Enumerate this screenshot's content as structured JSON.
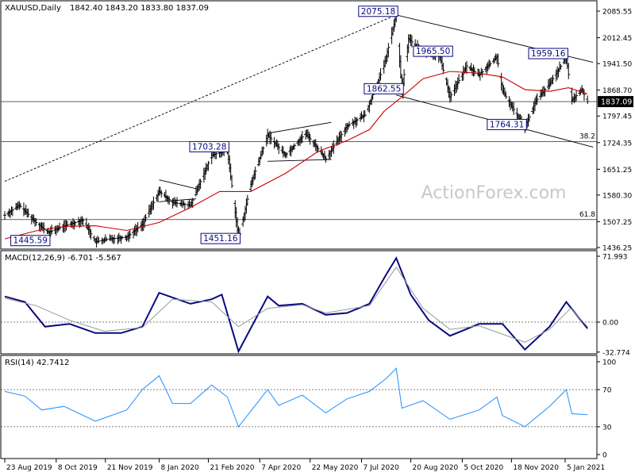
{
  "chart_data": [
    {
      "type": "candlestick",
      "title": "XAUUSD,Daily",
      "ohlc_label": "1842.40 1843.20 1833.80 1837.09",
      "current_price_label": "1837.09",
      "ylim": [
        1400,
        2120
      ],
      "y_ticks": [
        "2085.55",
        "2012.45",
        "1941.50",
        "1868.70",
        "1797.45",
        "1724.35",
        "1651.25",
        "1580.30",
        "1507.25",
        "1436.25"
      ],
      "price_series": [
        [
          "2019-08-23",
          1525
        ],
        [
          "2019-09-05",
          1552
        ],
        [
          "2019-09-20",
          1505
        ],
        [
          "2019-10-01",
          1478
        ],
        [
          "2019-10-15",
          1495
        ],
        [
          "2019-11-01",
          1512
        ],
        [
          "2019-11-12",
          1452
        ],
        [
          "2019-11-25",
          1460
        ],
        [
          "2019-12-10",
          1465
        ],
        [
          "2019-12-24",
          1500
        ],
        [
          "2020-01-08",
          1590
        ],
        [
          "2020-01-20",
          1560
        ],
        [
          "2020-02-05",
          1552
        ],
        [
          "2020-02-24",
          1690
        ],
        [
          "2020-03-09",
          1703
        ],
        [
          "2020-03-19",
          1460
        ],
        [
          "2020-03-30",
          1610
        ],
        [
          "2020-04-14",
          1745
        ],
        [
          "2020-04-30",
          1690
        ],
        [
          "2020-05-18",
          1750
        ],
        [
          "2020-06-05",
          1680
        ],
        [
          "2020-06-24",
          1770
        ],
        [
          "2020-07-10",
          1800
        ],
        [
          "2020-07-27",
          1935
        ],
        [
          "2020-08-07",
          2075
        ],
        [
          "2020-08-12",
          1862
        ],
        [
          "2020-08-18",
          2010
        ],
        [
          "2020-08-31",
          1970
        ],
        [
          "2020-09-15",
          1960
        ],
        [
          "2020-09-24",
          1850
        ],
        [
          "2020-10-09",
          1935
        ],
        [
          "2020-10-20",
          1910
        ],
        [
          "2020-11-05",
          1960
        ],
        [
          "2020-11-10",
          1865
        ],
        [
          "2020-11-30",
          1765
        ],
        [
          "2020-12-10",
          1840
        ],
        [
          "2020-12-22",
          1885
        ],
        [
          "2021-01-06",
          1959
        ],
        [
          "2021-01-11",
          1840
        ],
        [
          "2021-01-20",
          1870
        ],
        [
          "2021-01-25",
          1837
        ]
      ],
      "sma_series": [
        [
          "2019-08-23",
          1460
        ],
        [
          "2019-09-20",
          1482
        ],
        [
          "2019-10-15",
          1494
        ],
        [
          "2019-11-12",
          1496
        ],
        [
          "2019-12-10",
          1483
        ],
        [
          "2020-01-08",
          1505
        ],
        [
          "2020-02-05",
          1546
        ],
        [
          "2020-03-02",
          1590
        ],
        [
          "2020-03-30",
          1590
        ],
        [
          "2020-04-30",
          1640
        ],
        [
          "2020-05-29",
          1700
        ],
        [
          "2020-06-24",
          1730
        ],
        [
          "2020-07-14",
          1760
        ],
        [
          "2020-07-27",
          1810
        ],
        [
          "2020-08-12",
          1850
        ],
        [
          "2020-08-31",
          1900
        ],
        [
          "2020-09-24",
          1920
        ],
        [
          "2020-10-20",
          1915
        ],
        [
          "2020-11-10",
          1905
        ],
        [
          "2020-11-30",
          1870
        ],
        [
          "2020-12-22",
          1865
        ],
        [
          "2021-01-08",
          1875
        ],
        [
          "2021-01-25",
          1858
        ]
      ],
      "annotations": [
        {
          "label": "2075.18",
          "date": "2020-08-07",
          "price": 2075.18
        },
        {
          "label": "1965.50",
          "date": "2020-09-25",
          "price": 1965.5
        },
        {
          "label": "1959.16",
          "date": "2021-01-06",
          "price": 1959.16
        },
        {
          "label": "1862.55",
          "date": "2020-08-12",
          "price": 1862.55
        },
        {
          "label": "1764.31",
          "date": "2020-11-30",
          "price": 1764.31
        },
        {
          "label": "1703.28",
          "date": "2020-03-09",
          "price": 1703.28
        },
        {
          "label": "1451.16",
          "date": "2020-03-19",
          "price": 1451.16
        },
        {
          "label": "1445.59",
          "date": "2019-10-01",
          "price": 1445.59
        }
      ],
      "fib_levels": [
        {
          "label": "38.2",
          "price": 1727
        },
        {
          "label": "61.8",
          "price": 1513
        }
      ],
      "hlines": [
        1837
      ],
      "trendlines": [
        {
          "from": [
            "2019-08-23",
            1618
          ],
          "to": [
            "2020-08-07",
            2075
          ],
          "style": "dashed"
        },
        {
          "from": [
            "2020-08-07",
            2075
          ],
          "to": [
            "2021-01-30",
            1945
          ],
          "style": "solid"
        },
        {
          "from": [
            "2020-08-07",
            1855
          ],
          "to": [
            "2021-01-30",
            1712
          ],
          "style": "solid"
        },
        {
          "from": [
            "2020-01-08",
            1622
          ],
          "to": [
            "2020-02-10",
            1598
          ],
          "style": "solid"
        },
        {
          "from": [
            "2020-01-08",
            1562
          ],
          "to": [
            "2020-02-10",
            1570
          ],
          "style": "solid"
        },
        {
          "from": [
            "2020-04-14",
            1750
          ],
          "to": [
            "2020-06-10",
            1780
          ],
          "style": "solid"
        },
        {
          "from": [
            "2020-04-14",
            1673
          ],
          "to": [
            "2020-06-10",
            1678
          ],
          "style": "solid"
        }
      ],
      "watermark": "ActionForex.com"
    },
    {
      "type": "line",
      "title": "MACD(12,26,9) -6.701 -5.567",
      "ylim": [
        -40,
        80
      ],
      "y_ticks": [
        "71.993",
        "0.00",
        "-32.774"
      ],
      "current_labels": [
        "0.00",
        "0.00"
      ],
      "series": [
        {
          "role": "macd",
          "points": [
            [
              "2019-08-23",
              28
            ],
            [
              "2019-09-10",
              22
            ],
            [
              "2019-09-28",
              -5
            ],
            [
              "2019-10-20",
              -2
            ],
            [
              "2019-11-12",
              -12
            ],
            [
              "2019-12-05",
              -12
            ],
            [
              "2019-12-24",
              -5
            ],
            [
              "2020-01-08",
              32
            ],
            [
              "2020-02-05",
              20
            ],
            [
              "2020-02-24",
              25
            ],
            [
              "2020-03-04",
              30
            ],
            [
              "2020-03-19",
              -32
            ],
            [
              "2020-04-14",
              28
            ],
            [
              "2020-04-24",
              18
            ],
            [
              "2020-05-15",
              20
            ],
            [
              "2020-06-05",
              8
            ],
            [
              "2020-06-24",
              10
            ],
            [
              "2020-07-14",
              20
            ],
            [
              "2020-07-29",
              52
            ],
            [
              "2020-08-07",
              70
            ],
            [
              "2020-08-20",
              30
            ],
            [
              "2020-09-05",
              2
            ],
            [
              "2020-09-24",
              -15
            ],
            [
              "2020-10-20",
              -2
            ],
            [
              "2020-11-10",
              -2
            ],
            [
              "2020-11-30",
              -30
            ],
            [
              "2020-12-22",
              -5
            ],
            [
              "2021-01-06",
              22
            ],
            [
              "2021-01-25",
              -7
            ]
          ]
        },
        {
          "role": "signal",
          "points": [
            [
              "2019-08-23",
              26
            ],
            [
              "2019-09-20",
              18
            ],
            [
              "2019-10-20",
              2
            ],
            [
              "2019-11-20",
              -10
            ],
            [
              "2019-12-24",
              -6
            ],
            [
              "2020-01-20",
              25
            ],
            [
              "2020-02-24",
              22
            ],
            [
              "2020-03-19",
              -5
            ],
            [
              "2020-04-14",
              15
            ],
            [
              "2020-05-15",
              19
            ],
            [
              "2020-06-05",
              10
            ],
            [
              "2020-07-14",
              18
            ],
            [
              "2020-08-07",
              60
            ],
            [
              "2020-08-31",
              15
            ],
            [
              "2020-09-24",
              -8
            ],
            [
              "2020-10-20",
              -4
            ],
            [
              "2020-11-30",
              -22
            ],
            [
              "2020-12-22",
              -8
            ],
            [
              "2021-01-10",
              15
            ],
            [
              "2021-01-25",
              -5
            ]
          ]
        }
      ]
    },
    {
      "type": "line",
      "title": "RSI(14) 42.7412",
      "ylim": [
        0,
        100
      ],
      "y_ticks": [
        "100",
        "70",
        "30",
        "0"
      ],
      "reference_levels": [
        70,
        30
      ],
      "series": [
        {
          "role": "rsi",
          "points": [
            [
              "2019-08-23",
              68
            ],
            [
              "2019-09-10",
              63
            ],
            [
              "2019-09-25",
              48
            ],
            [
              "2019-10-15",
              52
            ],
            [
              "2019-11-12",
              36
            ],
            [
              "2019-12-10",
              48
            ],
            [
              "2019-12-24",
              70
            ],
            [
              "2020-01-08",
              85
            ],
            [
              "2020-01-20",
              55
            ],
            [
              "2020-02-05",
              55
            ],
            [
              "2020-02-24",
              75
            ],
            [
              "2020-03-09",
              62
            ],
            [
              "2020-03-19",
              30
            ],
            [
              "2020-04-14",
              70
            ],
            [
              "2020-04-24",
              53
            ],
            [
              "2020-05-15",
              64
            ],
            [
              "2020-06-05",
              45
            ],
            [
              "2020-06-24",
              60
            ],
            [
              "2020-07-14",
              68
            ],
            [
              "2020-07-29",
              82
            ],
            [
              "2020-08-07",
              93
            ],
            [
              "2020-08-12",
              50
            ],
            [
              "2020-08-31",
              58
            ],
            [
              "2020-09-24",
              38
            ],
            [
              "2020-10-20",
              48
            ],
            [
              "2020-11-05",
              62
            ],
            [
              "2020-11-10",
              42
            ],
            [
              "2020-11-30",
              30
            ],
            [
              "2020-12-22",
              52
            ],
            [
              "2021-01-06",
              70
            ],
            [
              "2021-01-11",
              44
            ],
            [
              "2021-01-25",
              43
            ]
          ]
        }
      ]
    }
  ],
  "x_axis": {
    "ticks": [
      {
        "label": "23 Aug 2019",
        "date": "2019-08-23"
      },
      {
        "label": "8 Oct 2019",
        "date": "2019-10-08"
      },
      {
        "label": "21 Nov 2019",
        "date": "2019-11-21"
      },
      {
        "label": "8 Jan 2020",
        "date": "2020-01-08"
      },
      {
        "label": "21 Feb 2020",
        "date": "2020-02-21"
      },
      {
        "label": "7 Apr 2020",
        "date": "2020-04-07"
      },
      {
        "label": "22 May 2020",
        "date": "2020-05-22"
      },
      {
        "label": "7 Jul 2020",
        "date": "2020-07-07"
      },
      {
        "label": "20 Aug 2020",
        "date": "2020-08-20"
      },
      {
        "label": "5 Oct 2020",
        "date": "2020-10-05"
      },
      {
        "label": "18 Nov 2020",
        "date": "2020-11-18"
      },
      {
        "label": "5 Jan 2021",
        "date": "2021-01-05"
      }
    ]
  },
  "colors": {
    "price": "#000000",
    "sma": "#cc0000",
    "macd": "#0a0a80",
    "signal": "#9a9a9a",
    "rsi": "#1e90ff",
    "annotation_text": "#0a0a80",
    "watermark": "#c8c8c8"
  }
}
